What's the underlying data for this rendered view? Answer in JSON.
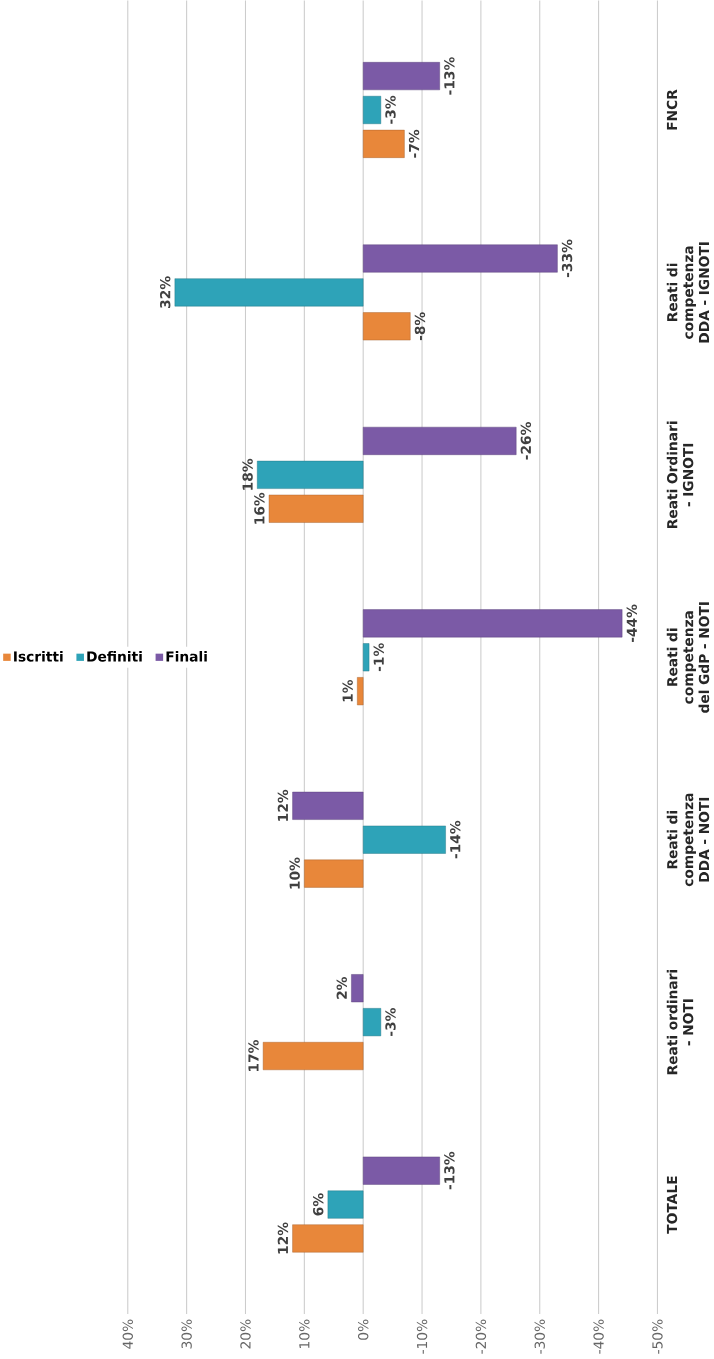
{
  "chart_data": {
    "type": "bar",
    "orientation": "horizontal",
    "categories": [
      "FNCR",
      "Reati di competenza DDA - IGNOTI",
      "Reati Ordinari - IGNOTI",
      "Reati di competenza del GdP - NOTI",
      "Reati di competenza DDA - NOTI",
      "Reati ordinari - NOTI",
      "TOTALE"
    ],
    "series": [
      {
        "name": "Iscritti",
        "color": "#e8873a",
        "values": [
          -7,
          -8,
          16,
          1,
          10,
          17,
          12
        ],
        "value_labels": [
          "-7%",
          "-8%",
          "16%",
          "1%",
          "10%",
          "17%",
          "12%"
        ]
      },
      {
        "name": "Definiti",
        "color": "#2ea3b8",
        "values": [
          -3,
          32,
          18,
          -1,
          -14,
          -3,
          6
        ],
        "value_labels": [
          "-3%",
          "32%",
          "18%",
          "-1%",
          "-14%",
          "-3%",
          "6%"
        ]
      },
      {
        "name": "Finali",
        "color": "#7b5aa6",
        "values": [
          -13,
          -33,
          -26,
          -44,
          12,
          2,
          -13
        ],
        "value_labels": [
          "-13%",
          "-33%",
          "-26%",
          "-44%",
          "12%",
          "2%",
          "-13%"
        ]
      }
    ],
    "xlim": [
      40,
      -50
    ],
    "xticks": [
      {
        "value": 40,
        "label": "40%"
      },
      {
        "value": 30,
        "label": "30%"
      },
      {
        "value": 20,
        "label": "20%"
      },
      {
        "value": 10,
        "label": "10%"
      },
      {
        "value": 0,
        "label": "0%"
      },
      {
        "value": -10,
        "label": "-10%"
      },
      {
        "value": -20,
        "label": "-20%"
      },
      {
        "value": -30,
        "label": "-30%"
      },
      {
        "value": -40,
        "label": "-40%"
      },
      {
        "value": -50,
        "label": "-50%"
      }
    ],
    "grid": "x",
    "legend": "left"
  }
}
